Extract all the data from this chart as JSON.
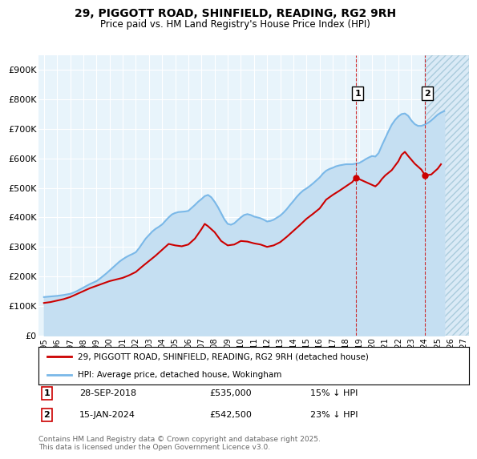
{
  "title": "29, PIGGOTT ROAD, SHINFIELD, READING, RG2 9RH",
  "subtitle": "Price paid vs. HM Land Registry's House Price Index (HPI)",
  "background_color": "#ffffff",
  "plot_bg_color": "#e8f4fb",
  "grid_color": "#ffffff",
  "hpi_color": "#7ab8e8",
  "hpi_fill_color": "#b8d8f0",
  "price_color": "#cc0000",
  "legend_line1": "29, PIGGOTT ROAD, SHINFIELD, READING, RG2 9RH (detached house)",
  "legend_line2": "HPI: Average price, detached house, Wokingham",
  "footer": "Contains HM Land Registry data © Crown copyright and database right 2025.\nThis data is licensed under the Open Government Licence v3.0.",
  "ylim": [
    0,
    950000
  ],
  "yticks": [
    0,
    100000,
    200000,
    300000,
    400000,
    500000,
    600000,
    700000,
    800000,
    900000
  ],
  "ytick_labels": [
    "£0",
    "£100K",
    "£200K",
    "£300K",
    "£400K",
    "£500K",
    "£600K",
    "£700K",
    "£800K",
    "£900K"
  ],
  "xlim_left": 1994.6,
  "xlim_right": 2027.4,
  "xtick_years": [
    1995,
    1996,
    1997,
    1998,
    1999,
    2000,
    2001,
    2002,
    2003,
    2004,
    2005,
    2006,
    2007,
    2008,
    2009,
    2010,
    2011,
    2012,
    2013,
    2014,
    2015,
    2016,
    2017,
    2018,
    2019,
    2020,
    2021,
    2022,
    2023,
    2024,
    2025,
    2026,
    2027
  ],
  "hpi_data": [
    [
      1995,
      130000
    ],
    [
      1995.25,
      131000
    ],
    [
      1995.5,
      132000
    ],
    [
      1995.75,
      133000
    ],
    [
      1996,
      134000
    ],
    [
      1996.25,
      135500
    ],
    [
      1996.5,
      137000
    ],
    [
      1996.75,
      139000
    ],
    [
      1997,
      141000
    ],
    [
      1997.25,
      145000
    ],
    [
      1997.5,
      150000
    ],
    [
      1997.75,
      156000
    ],
    [
      1998,
      162000
    ],
    [
      1998.25,
      168000
    ],
    [
      1998.5,
      174000
    ],
    [
      1998.75,
      179000
    ],
    [
      1999,
      184000
    ],
    [
      1999.25,
      192000
    ],
    [
      1999.5,
      201000
    ],
    [
      1999.75,
      210000
    ],
    [
      2000,
      220000
    ],
    [
      2000.25,
      230000
    ],
    [
      2000.5,
      240000
    ],
    [
      2000.75,
      250000
    ],
    [
      2001,
      258000
    ],
    [
      2001.25,
      265000
    ],
    [
      2001.5,
      271000
    ],
    [
      2001.75,
      276000
    ],
    [
      2002,
      282000
    ],
    [
      2002.25,
      296000
    ],
    [
      2002.5,
      312000
    ],
    [
      2002.75,
      328000
    ],
    [
      2003,
      340000
    ],
    [
      2003.25,
      352000
    ],
    [
      2003.5,
      361000
    ],
    [
      2003.75,
      368000
    ],
    [
      2004,
      376000
    ],
    [
      2004.25,
      388000
    ],
    [
      2004.5,
      400000
    ],
    [
      2004.75,
      410000
    ],
    [
      2005,
      415000
    ],
    [
      2005.25,
      418000
    ],
    [
      2005.5,
      419000
    ],
    [
      2005.75,
      420000
    ],
    [
      2006,
      422000
    ],
    [
      2006.25,
      432000
    ],
    [
      2006.5,
      442000
    ],
    [
      2006.75,
      453000
    ],
    [
      2007,
      462000
    ],
    [
      2007.25,
      472000
    ],
    [
      2007.5,
      476000
    ],
    [
      2007.75,
      468000
    ],
    [
      2008,
      453000
    ],
    [
      2008.25,
      435000
    ],
    [
      2008.5,
      414000
    ],
    [
      2008.75,
      393000
    ],
    [
      2009,
      378000
    ],
    [
      2009.25,
      375000
    ],
    [
      2009.5,
      380000
    ],
    [
      2009.75,
      390000
    ],
    [
      2010,
      400000
    ],
    [
      2010.25,
      408000
    ],
    [
      2010.5,
      411000
    ],
    [
      2010.75,
      408000
    ],
    [
      2011,
      403000
    ],
    [
      2011.25,
      400000
    ],
    [
      2011.5,
      397000
    ],
    [
      2011.75,
      392000
    ],
    [
      2012,
      386000
    ],
    [
      2012.25,
      388000
    ],
    [
      2012.5,
      392000
    ],
    [
      2012.75,
      399000
    ],
    [
      2013,
      406000
    ],
    [
      2013.25,
      416000
    ],
    [
      2013.5,
      428000
    ],
    [
      2013.75,
      442000
    ],
    [
      2014,
      455000
    ],
    [
      2014.25,
      469000
    ],
    [
      2014.5,
      481000
    ],
    [
      2014.75,
      491000
    ],
    [
      2015,
      498000
    ],
    [
      2015.25,
      506000
    ],
    [
      2015.5,
      515000
    ],
    [
      2015.75,
      525000
    ],
    [
      2016,
      535000
    ],
    [
      2016.25,
      548000
    ],
    [
      2016.5,
      558000
    ],
    [
      2016.75,
      564000
    ],
    [
      2017,
      568000
    ],
    [
      2017.25,
      573000
    ],
    [
      2017.5,
      576000
    ],
    [
      2017.75,
      578000
    ],
    [
      2018,
      580000
    ],
    [
      2018.25,
      580000
    ],
    [
      2018.5,
      580000
    ],
    [
      2018.75,
      582000
    ],
    [
      2019,
      584000
    ],
    [
      2019.25,
      590000
    ],
    [
      2019.5,
      597000
    ],
    [
      2019.75,
      603000
    ],
    [
      2020,
      608000
    ],
    [
      2020.25,
      606000
    ],
    [
      2020.5,
      618000
    ],
    [
      2020.75,
      644000
    ],
    [
      2021,
      668000
    ],
    [
      2021.25,
      692000
    ],
    [
      2021.5,
      714000
    ],
    [
      2021.75,
      730000
    ],
    [
      2022,
      742000
    ],
    [
      2022.25,
      750000
    ],
    [
      2022.5,
      752000
    ],
    [
      2022.75,
      744000
    ],
    [
      2023,
      728000
    ],
    [
      2023.25,
      716000
    ],
    [
      2023.5,
      710000
    ],
    [
      2023.75,
      710000
    ],
    [
      2024,
      714000
    ],
    [
      2024.25,
      720000
    ],
    [
      2024.5,
      728000
    ],
    [
      2024.75,
      738000
    ],
    [
      2025,
      748000
    ],
    [
      2025.25,
      755000
    ],
    [
      2025.5,
      760000
    ]
  ],
  "price_data": [
    [
      1995,
      110000
    ],
    [
      1995.5,
      113000
    ],
    [
      1996,
      118000
    ],
    [
      1996.5,
      123000
    ],
    [
      1997,
      130000
    ],
    [
      1997.5,
      140000
    ],
    [
      1998,
      150000
    ],
    [
      1998.5,
      160000
    ],
    [
      1999,
      168000
    ],
    [
      1999.5,
      176000
    ],
    [
      2000,
      184000
    ],
    [
      2001,
      195000
    ],
    [
      2001.5,
      204000
    ],
    [
      2002,
      215000
    ],
    [
      2002.5,
      234000
    ],
    [
      2003,
      252000
    ],
    [
      2003.5,
      270000
    ],
    [
      2004,
      290000
    ],
    [
      2004.5,
      310000
    ],
    [
      2005,
      305000
    ],
    [
      2005.5,
      302000
    ],
    [
      2006,
      308000
    ],
    [
      2006.5,
      328000
    ],
    [
      2007,
      360000
    ],
    [
      2007.25,
      378000
    ],
    [
      2007.5,
      370000
    ],
    [
      2008,
      350000
    ],
    [
      2008.5,
      320000
    ],
    [
      2009,
      305000
    ],
    [
      2009.5,
      308000
    ],
    [
      2010,
      320000
    ],
    [
      2010.5,
      318000
    ],
    [
      2011,
      312000
    ],
    [
      2011.5,
      308000
    ],
    [
      2012,
      300000
    ],
    [
      2012.5,
      305000
    ],
    [
      2013,
      316000
    ],
    [
      2013.5,
      334000
    ],
    [
      2014,
      354000
    ],
    [
      2014.5,
      374000
    ],
    [
      2015,
      395000
    ],
    [
      2015.5,
      412000
    ],
    [
      2016,
      430000
    ],
    [
      2016.5,
      460000
    ],
    [
      2017,
      476000
    ],
    [
      2017.5,
      490000
    ],
    [
      2018,
      505000
    ],
    [
      2018.5,
      520000
    ],
    [
      2018.75,
      535000
    ],
    [
      2019,
      530000
    ],
    [
      2019.5,
      520000
    ],
    [
      2020,
      510000
    ],
    [
      2020.25,
      505000
    ],
    [
      2020.5,
      515000
    ],
    [
      2020.75,
      530000
    ],
    [
      2021,
      542000
    ],
    [
      2021.5,
      560000
    ],
    [
      2022,
      590000
    ],
    [
      2022.25,
      612000
    ],
    [
      2022.5,
      622000
    ],
    [
      2022.75,
      608000
    ],
    [
      2023,
      595000
    ],
    [
      2023.25,
      582000
    ],
    [
      2023.5,
      572000
    ],
    [
      2023.75,
      562000
    ],
    [
      2024.04,
      542500
    ],
    [
      2024.5,
      545000
    ],
    [
      2025,
      565000
    ],
    [
      2025.25,
      580000
    ]
  ],
  "sale1_x": 2018.75,
  "sale1_y": 535000,
  "sale1_label": "1",
  "sale2_x": 2024.04,
  "sale2_y": 542500,
  "sale2_label": "2",
  "vline1_x": 2018.75,
  "vline2_x": 2024.04,
  "hatch_start": 2024.04,
  "hatch_end": 2027.4
}
